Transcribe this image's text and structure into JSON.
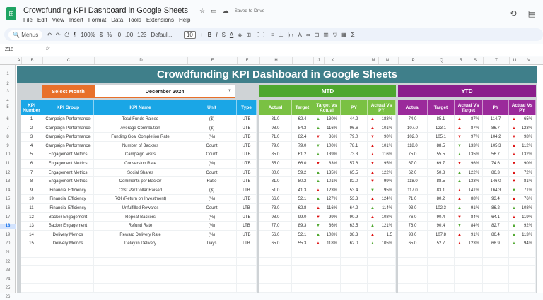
{
  "app": {
    "title": "Crowdfunding KPI Dashboard in Google Sheets",
    "saved": "Saved to Drive",
    "menu": [
      "File",
      "Edit",
      "View",
      "Insert",
      "Format",
      "Data",
      "Tools",
      "Extensions",
      "Help"
    ],
    "toolbar": {
      "menus": "Menus",
      "zoom": "100%",
      "font": "Defaul...",
      "font_size": "10",
      "currency": "$",
      "percent": "%",
      "format_123": "123"
    },
    "name_box": "Z18",
    "fx": "fx"
  },
  "columns": [
    "A",
    "B",
    "C",
    "D",
    "E",
    "F",
    "H",
    "I",
    "J",
    "K",
    "L",
    "M",
    "N",
    "P",
    "Q",
    "R",
    "S",
    "T",
    "U",
    "V"
  ],
  "rows": [
    "1",
    "2",
    "3",
    "4",
    "5",
    "6",
    "7",
    "8",
    "9",
    "10",
    "11",
    "12",
    "13",
    "14",
    "15",
    "16",
    "17",
    "18",
    "19",
    "20",
    "21",
    "22",
    "23",
    "24",
    "25",
    "26"
  ],
  "dashboard": {
    "title": "Crowdfunding KPI Dashboard in Google Sheets",
    "select_label": "Select Month",
    "month": "December 2024",
    "mtd": "MTD",
    "ytd": "YTD",
    "headers": [
      "KPI Number",
      "KPI Group",
      "KPI Name",
      "Unit",
      "Type"
    ],
    "mtd_headers": [
      "Actual",
      "Target",
      "Target Vs Actual",
      "PY",
      "Actual Vs PY"
    ],
    "ytd_headers": [
      "Actual",
      "Target",
      "Actual Vs Target",
      "PY",
      "Actual Vs PY"
    ],
    "colors": {
      "banner": "#3f7f8a",
      "orange": "#e8702a",
      "blue": "#1aa6e6",
      "green": "#4ea72e",
      "purple": "#8b1e8b"
    }
  },
  "kpis": [
    {
      "num": "1",
      "group": "Campaign Performance",
      "name": "Total Funds Raised",
      "unit": "($)",
      "type": "UTB",
      "mtd": [
        "81.0",
        "62.4",
        [
          "up-green",
          "130%"
        ],
        "44.2",
        [
          "up-red",
          "183%"
        ]
      ],
      "ytd": [
        "74.0",
        "85.1",
        [
          "up-red",
          "87%"
        ],
        "114.7",
        [
          "up-red",
          "65%"
        ]
      ]
    },
    {
      "num": "2",
      "group": "Campaign Performance",
      "name": "Average Contribution",
      "unit": "($)",
      "type": "UTB",
      "mtd": [
        "98.0",
        "84.3",
        [
          "up-green",
          "116%"
        ],
        "96.6",
        [
          "up-red",
          "101%"
        ]
      ],
      "ytd": [
        "107.0",
        "123.1",
        [
          "up-red",
          "87%"
        ],
        "86.7",
        [
          "up-red",
          "123%"
        ]
      ]
    },
    {
      "num": "3",
      "group": "Campaign Performance",
      "name": "Funding Goal Completion Rate",
      "unit": "(%)",
      "type": "UTB",
      "mtd": [
        "71.0",
        "82.4",
        [
          "down-red",
          "86%"
        ],
        "79.0",
        [
          "down-red",
          "90%"
        ]
      ],
      "ytd": [
        "102.0",
        "105.1",
        [
          "down-red",
          "97%"
        ],
        "104.2",
        [
          "down-red",
          "98%"
        ]
      ]
    },
    {
      "num": "4",
      "group": "Campaign Performance",
      "name": "Number of Backers",
      "unit": "Count",
      "type": "UTB",
      "mtd": [
        "79.0",
        "79.0",
        [
          "down-green",
          "100%"
        ],
        "78.1",
        [
          "up-red",
          "101%"
        ]
      ],
      "ytd": [
        "118.0",
        "88.5",
        [
          "down-green",
          "133%"
        ],
        "105.3",
        [
          "up-red",
          "112%"
        ]
      ]
    },
    {
      "num": "5",
      "group": "Engagement Metrics",
      "name": "Campaign Visits",
      "unit": "Count",
      "type": "UTB",
      "mtd": [
        "85.0",
        "61.2",
        [
          "up-green",
          "139%"
        ],
        "73.3",
        [
          "up-red",
          "116%"
        ]
      ],
      "ytd": [
        "75.0",
        "55.5",
        [
          "up-green",
          "135%"
        ],
        "56.7",
        [
          "up-red",
          "132%"
        ]
      ]
    },
    {
      "num": "6",
      "group": "Engagement Metrics",
      "name": "Conversion Rate",
      "unit": "(%)",
      "type": "UTB",
      "mtd": [
        "55.0",
        "66.0",
        [
          "down-red",
          "83%"
        ],
        "57.6",
        [
          "down-red",
          "95%"
        ]
      ],
      "ytd": [
        "67.0",
        "69.7",
        [
          "down-red",
          "96%"
        ],
        "74.6",
        [
          "down-red",
          "90%"
        ]
      ]
    },
    {
      "num": "7",
      "group": "Engagement Metrics",
      "name": "Social Shares",
      "unit": "Count",
      "type": "UTB",
      "mtd": [
        "80.0",
        "59.2",
        [
          "up-green",
          "135%"
        ],
        "65.5",
        [
          "up-red",
          "122%"
        ]
      ],
      "ytd": [
        "62.0",
        "50.8",
        [
          "up-green",
          "122%"
        ],
        "86.3",
        [
          "up-red",
          "72%"
        ]
      ]
    },
    {
      "num": "8",
      "group": "Engagement Metrics",
      "name": "Comments per Backer",
      "unit": "Ratio",
      "type": "UTB",
      "mtd": [
        "81.0",
        "80.2",
        [
          "up-green",
          "101%"
        ],
        "82.0",
        [
          "down-red",
          "99%"
        ]
      ],
      "ytd": [
        "118.0",
        "88.5",
        [
          "up-green",
          "133%"
        ],
        "146.0",
        [
          "down-red",
          "81%"
        ]
      ]
    },
    {
      "num": "9",
      "group": "Financial Efficiency",
      "name": "Cost Per Dollar Raised",
      "unit": "($)",
      "type": "LTB",
      "mtd": [
        "51.0",
        "41.3",
        [
          "up-red",
          "123%"
        ],
        "53.4",
        [
          "down-green",
          "95%"
        ]
      ],
      "ytd": [
        "117.0",
        "83.1",
        [
          "up-red",
          "141%"
        ],
        "164.3",
        [
          "down-green",
          "71%"
        ]
      ]
    },
    {
      "num": "10",
      "group": "Financial Efficiency",
      "name": "ROI (Return on Investment)",
      "unit": "(%)",
      "type": "UTB",
      "mtd": [
        "66.0",
        "52.1",
        [
          "up-green",
          "127%"
        ],
        "53.3",
        [
          "up-red",
          "124%"
        ]
      ],
      "ytd": [
        "71.0",
        "80.2",
        [
          "up-red",
          "88%"
        ],
        "93.4",
        [
          "up-red",
          "76%"
        ]
      ]
    },
    {
      "num": "11",
      "group": "Financial Efficiency",
      "name": "Unfulfilled Rewards",
      "unit": "Count",
      "type": "LTB",
      "mtd": [
        "73.0",
        "62.8",
        [
          "up-red",
          "116%"
        ],
        "64.2",
        [
          "up-green",
          "114%"
        ]
      ],
      "ytd": [
        "93.0",
        "102.3",
        [
          "up-green",
          "91%"
        ],
        "86.2",
        [
          "up-green",
          "108%"
        ]
      ]
    },
    {
      "num": "12",
      "group": "Backer Engagement",
      "name": "Repeat Backers",
      "unit": "(%)",
      "type": "UTB",
      "mtd": [
        "98.0",
        "99.0",
        [
          "down-red",
          "99%"
        ],
        "90.9",
        [
          "up-red",
          "108%"
        ]
      ],
      "ytd": [
        "76.0",
        "90.4",
        [
          "down-red",
          "84%"
        ],
        "64.1",
        [
          "up-red",
          "119%"
        ]
      ]
    },
    {
      "num": "13",
      "group": "Backer Engagement",
      "name": "Refund Rate",
      "unit": "(%)",
      "type": "LTB",
      "mtd": [
        "77.0",
        "89.3",
        [
          "down-green",
          "86%"
        ],
        "63.5",
        [
          "up-green",
          "121%"
        ]
      ],
      "ytd": [
        "76.0",
        "90.4",
        [
          "down-green",
          "84%"
        ],
        "82.7",
        [
          "up-green",
          "92%"
        ]
      ]
    },
    {
      "num": "14",
      "group": "Delivery Metrics",
      "name": "Reward Delivery Rate",
      "unit": "(%)",
      "type": "UTB",
      "mtd": [
        "56.0",
        "52.1",
        [
          "up-green",
          "108%"
        ],
        "38.3",
        [
          "up-red",
          "1.5"
        ]
      ],
      "ytd": [
        "98.0",
        "107.8",
        [
          "up-red",
          "91%"
        ],
        "86.4",
        [
          "up-green",
          "113%"
        ]
      ]
    },
    {
      "num": "15",
      "group": "Delivery Metrics",
      "name": "Delay in Delivery",
      "unit": "Days",
      "type": "LTB",
      "mtd": [
        "65.0",
        "55.3",
        [
          "up-red",
          "118%"
        ],
        "62.0",
        [
          "up-green",
          "105%"
        ]
      ],
      "ytd": [
        "65.0",
        "52.7",
        [
          "up-red",
          "123%"
        ],
        "68.9",
        [
          "up-green",
          "94%"
        ]
      ]
    }
  ]
}
